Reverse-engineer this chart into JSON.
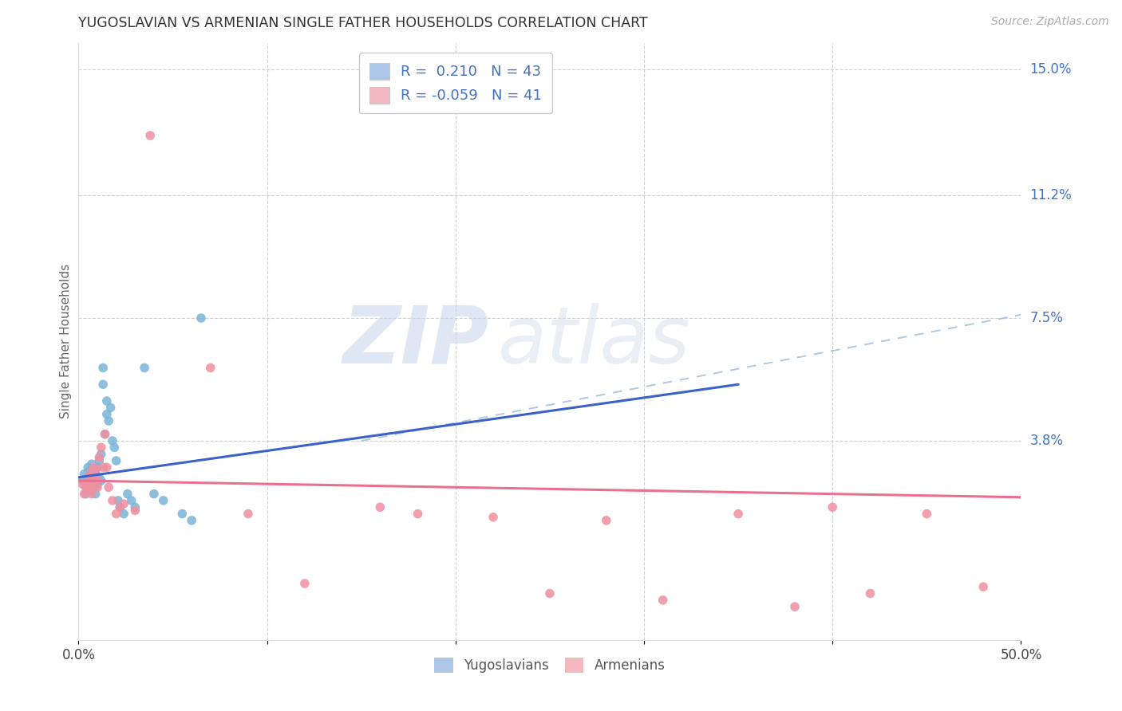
{
  "title": "YUGOSLAVIAN VS ARMENIAN SINGLE FATHER HOUSEHOLDS CORRELATION CHART",
  "source": "Source: ZipAtlas.com",
  "ylabel": "Single Father Households",
  "right_yticks": [
    "15.0%",
    "11.2%",
    "7.5%",
    "3.8%"
  ],
  "right_ytick_vals": [
    0.15,
    0.112,
    0.075,
    0.038
  ],
  "xlim": [
    0.0,
    0.5
  ],
  "ylim": [
    -0.022,
    0.158
  ],
  "legend_r1": "R =  0.210   N = 43",
  "legend_r2": "R = -0.059   N = 41",
  "legend_color1": "#aec6e8",
  "legend_color2": "#f4b8c1",
  "yug_color": "#7ab4d8",
  "arm_color": "#f090a0",
  "yug_line_color": "#3a62c8",
  "arm_line_color": "#e87090",
  "yug_trend": [
    0.0,
    0.027,
    0.35,
    0.055
  ],
  "arm_trend": [
    0.0,
    0.026,
    0.5,
    0.021
  ],
  "dash_line": [
    0.15,
    0.038,
    0.5,
    0.076
  ],
  "yug_x": [
    0.002,
    0.003,
    0.004,
    0.004,
    0.005,
    0.005,
    0.005,
    0.006,
    0.006,
    0.007,
    0.007,
    0.008,
    0.008,
    0.009,
    0.009,
    0.01,
    0.01,
    0.011,
    0.011,
    0.012,
    0.012,
    0.013,
    0.013,
    0.014,
    0.015,
    0.015,
    0.016,
    0.017,
    0.018,
    0.019,
    0.02,
    0.021,
    0.022,
    0.024,
    0.026,
    0.028,
    0.03,
    0.035,
    0.04,
    0.045,
    0.055,
    0.06,
    0.065
  ],
  "yug_y": [
    0.026,
    0.028,
    0.024,
    0.022,
    0.03,
    0.025,
    0.027,
    0.029,
    0.023,
    0.031,
    0.027,
    0.026,
    0.024,
    0.028,
    0.022,
    0.03,
    0.025,
    0.032,
    0.027,
    0.034,
    0.026,
    0.06,
    0.055,
    0.04,
    0.05,
    0.046,
    0.044,
    0.048,
    0.038,
    0.036,
    0.032,
    0.02,
    0.018,
    0.016,
    0.022,
    0.02,
    0.018,
    0.06,
    0.022,
    0.02,
    0.016,
    0.014,
    0.075
  ],
  "arm_x": [
    0.002,
    0.003,
    0.004,
    0.005,
    0.005,
    0.006,
    0.006,
    0.007,
    0.007,
    0.008,
    0.008,
    0.009,
    0.01,
    0.01,
    0.011,
    0.012,
    0.013,
    0.014,
    0.015,
    0.016,
    0.018,
    0.02,
    0.022,
    0.024,
    0.03,
    0.038,
    0.07,
    0.09,
    0.12,
    0.16,
    0.18,
    0.22,
    0.25,
    0.28,
    0.31,
    0.35,
    0.38,
    0.4,
    0.42,
    0.45,
    0.48
  ],
  "arm_y": [
    0.025,
    0.022,
    0.024,
    0.026,
    0.023,
    0.028,
    0.025,
    0.024,
    0.022,
    0.03,
    0.027,
    0.029,
    0.024,
    0.026,
    0.033,
    0.036,
    0.03,
    0.04,
    0.03,
    0.024,
    0.02,
    0.016,
    0.018,
    0.019,
    0.017,
    0.13,
    0.06,
    0.016,
    -0.005,
    0.018,
    0.016,
    0.015,
    -0.008,
    0.014,
    -0.01,
    0.016,
    -0.012,
    0.018,
    -0.008,
    0.016,
    -0.006
  ]
}
